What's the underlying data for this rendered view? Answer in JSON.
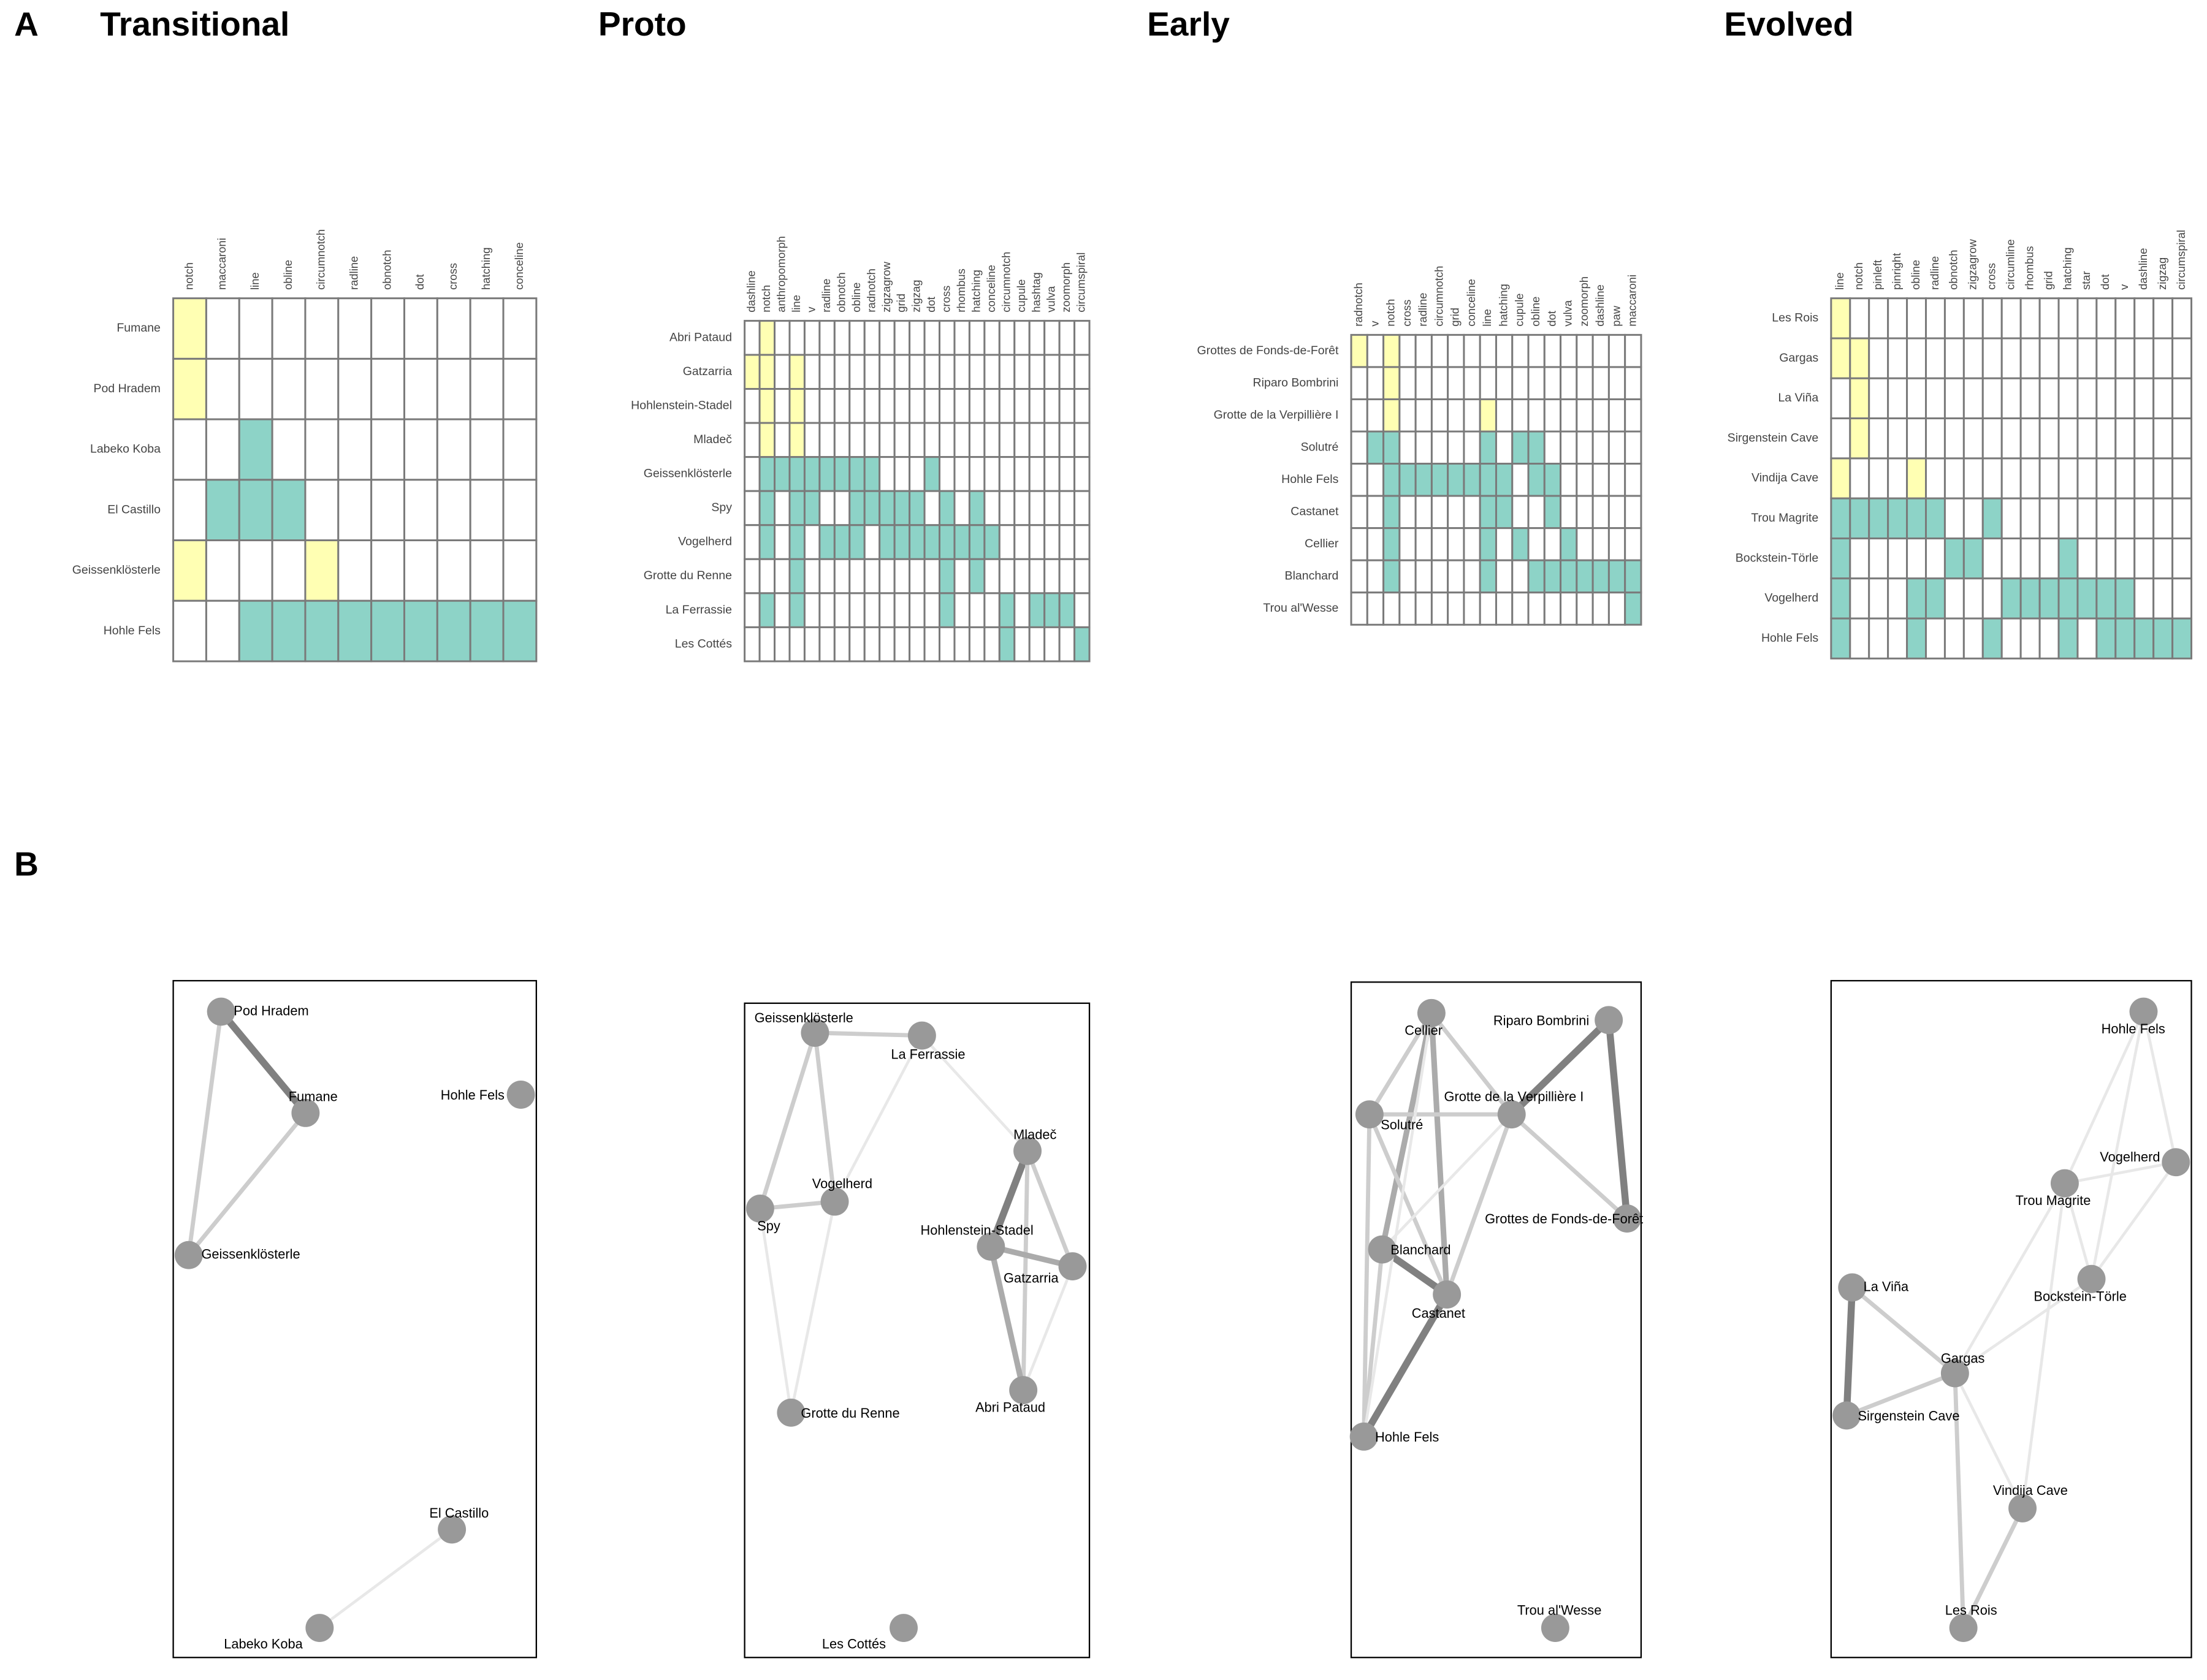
{
  "panel_labels": [
    "A",
    "B"
  ],
  "cell_colors": [
    "#ffffff",
    "#ffffb3",
    "#8dd3c7"
  ],
  "matrices": [
    {
      "title": "Transitional",
      "columns": [
        "notch",
        "maccaroni",
        "line",
        "obline",
        "circumnotch",
        "radline",
        "obnotch",
        "dot",
        "cross",
        "hatching",
        "conceline"
      ],
      "rows": [
        "Fumane",
        "Pod Hradem",
        "Labeko Koba",
        "El Castillo",
        "Geissenklösterle",
        "Hohle Fels"
      ],
      "cells": [
        [
          1,
          0,
          0,
          0,
          0,
          0,
          0,
          0,
          0,
          0,
          0
        ],
        [
          1,
          0,
          0,
          0,
          0,
          0,
          0,
          0,
          0,
          0,
          0
        ],
        [
          0,
          0,
          2,
          0,
          0,
          0,
          0,
          0,
          0,
          0,
          0
        ],
        [
          0,
          2,
          2,
          2,
          0,
          0,
          0,
          0,
          0,
          0,
          0
        ],
        [
          1,
          0,
          0,
          0,
          1,
          0,
          0,
          0,
          0,
          0,
          0
        ],
        [
          0,
          0,
          2,
          2,
          2,
          2,
          2,
          2,
          2,
          2,
          2
        ]
      ]
    },
    {
      "title": "Proto",
      "columns": [
        "dashline",
        "notch",
        "anthropomorph",
        "line",
        "v",
        "radline",
        "obnotch",
        "obline",
        "radnotch",
        "zigzagrow",
        "grid",
        "zigzag",
        "dot",
        "cross",
        "rhombus",
        "hatching",
        "conceline",
        "circumnotch",
        "cupule",
        "hashtag",
        "vulva",
        "zoomorph",
        "circumspiral"
      ],
      "rows": [
        "Abri Pataud",
        "Gatzarria",
        "Hohlenstein-Stadel",
        "Mladeč",
        "Geissenklösterle",
        "Spy",
        "Vogelherd",
        "Grotte du Renne",
        "La Ferrassie",
        "Les Cottés"
      ],
      "cells": [
        [
          0,
          1,
          0,
          0,
          0,
          0,
          0,
          0,
          0,
          0,
          0,
          0,
          0,
          0,
          0,
          0,
          0,
          0,
          0,
          0,
          0,
          0,
          0
        ],
        [
          1,
          1,
          0,
          1,
          0,
          0,
          0,
          0,
          0,
          0,
          0,
          0,
          0,
          0,
          0,
          0,
          0,
          0,
          0,
          0,
          0,
          0,
          0
        ],
        [
          0,
          1,
          0,
          1,
          0,
          0,
          0,
          0,
          0,
          0,
          0,
          0,
          0,
          0,
          0,
          0,
          0,
          0,
          0,
          0,
          0,
          0,
          0
        ],
        [
          0,
          1,
          0,
          1,
          0,
          0,
          0,
          0,
          0,
          0,
          0,
          0,
          0,
          0,
          0,
          0,
          0,
          0,
          0,
          0,
          0,
          0,
          0
        ],
        [
          0,
          2,
          2,
          2,
          2,
          2,
          2,
          2,
          2,
          0,
          0,
          0,
          2,
          0,
          0,
          0,
          0,
          0,
          0,
          0,
          0,
          0,
          0
        ],
        [
          0,
          2,
          0,
          2,
          2,
          0,
          0,
          2,
          2,
          2,
          2,
          2,
          0,
          2,
          0,
          2,
          0,
          0,
          0,
          0,
          0,
          0,
          0
        ],
        [
          0,
          2,
          0,
          2,
          0,
          2,
          2,
          2,
          0,
          2,
          2,
          2,
          2,
          2,
          2,
          2,
          2,
          0,
          0,
          0,
          0,
          0,
          0
        ],
        [
          0,
          0,
          0,
          2,
          0,
          0,
          0,
          0,
          0,
          0,
          0,
          0,
          0,
          2,
          0,
          2,
          0,
          0,
          0,
          0,
          0,
          0,
          0
        ],
        [
          0,
          2,
          0,
          2,
          0,
          0,
          0,
          0,
          0,
          0,
          0,
          0,
          0,
          2,
          0,
          0,
          0,
          2,
          0,
          2,
          2,
          2,
          0
        ],
        [
          0,
          0,
          0,
          0,
          0,
          0,
          0,
          0,
          0,
          0,
          0,
          0,
          0,
          0,
          0,
          0,
          0,
          2,
          0,
          0,
          0,
          0,
          2
        ]
      ]
    },
    {
      "title": "Early",
      "columns": [
        "radnotch",
        "v",
        "notch",
        "cross",
        "radline",
        "circumnotch",
        "grid",
        "conceline",
        "line",
        "hatching",
        "cupule",
        "obline",
        "dot",
        "vulva",
        "zoomorph",
        "dashline",
        "paw",
        "maccaroni"
      ],
      "rows": [
        "Grottes de Fonds-de-Forêt",
        "Riparo Bombrini",
        "Grotte de la Verpillière I",
        "Solutré",
        "Hohle Fels",
        "Castanet",
        "Cellier",
        "Blanchard",
        "Trou al'Wesse"
      ],
      "cells": [
        [
          1,
          0,
          1,
          0,
          0,
          0,
          0,
          0,
          0,
          0,
          0,
          0,
          0,
          0,
          0,
          0,
          0,
          0
        ],
        [
          0,
          0,
          1,
          0,
          0,
          0,
          0,
          0,
          0,
          0,
          0,
          0,
          0,
          0,
          0,
          0,
          0,
          0
        ],
        [
          0,
          0,
          1,
          0,
          0,
          0,
          0,
          0,
          1,
          0,
          0,
          0,
          0,
          0,
          0,
          0,
          0,
          0
        ],
        [
          0,
          2,
          2,
          0,
          0,
          0,
          0,
          0,
          2,
          0,
          2,
          2,
          0,
          0,
          0,
          0,
          0,
          0
        ],
        [
          0,
          0,
          2,
          2,
          2,
          2,
          2,
          2,
          2,
          2,
          0,
          2,
          2,
          0,
          0,
          0,
          0,
          0
        ],
        [
          0,
          0,
          2,
          0,
          0,
          0,
          0,
          0,
          2,
          2,
          0,
          0,
          2,
          0,
          0,
          0,
          0,
          0
        ],
        [
          0,
          0,
          2,
          0,
          0,
          0,
          0,
          0,
          2,
          0,
          2,
          0,
          0,
          2,
          0,
          0,
          0,
          0
        ],
        [
          0,
          0,
          2,
          0,
          0,
          0,
          0,
          0,
          2,
          0,
          0,
          2,
          2,
          2,
          2,
          2,
          2,
          2
        ],
        [
          0,
          0,
          0,
          0,
          0,
          0,
          0,
          0,
          0,
          0,
          0,
          0,
          0,
          0,
          0,
          0,
          0,
          2
        ]
      ]
    },
    {
      "title": "Evolved",
      "columns": [
        "line",
        "notch",
        "pinleft",
        "pinright",
        "obline",
        "radline",
        "obnotch",
        "zigzagrow",
        "cross",
        "circumline",
        "rhombus",
        "grid",
        "hatching",
        "star",
        "dot",
        "v",
        "dashline",
        "zigzag",
        "circumspiral"
      ],
      "rows": [
        "Les Rois",
        "Gargas",
        "La Viña",
        "Sirgenstein Cave",
        "Vindija Cave",
        "Trou Magrite",
        "Bockstein-Törle",
        "Vogelherd",
        "Hohle Fels"
      ],
      "cells": [
        [
          1,
          0,
          0,
          0,
          0,
          0,
          0,
          0,
          0,
          0,
          0,
          0,
          0,
          0,
          0,
          0,
          0,
          0,
          0
        ],
        [
          1,
          1,
          0,
          0,
          0,
          0,
          0,
          0,
          0,
          0,
          0,
          0,
          0,
          0,
          0,
          0,
          0,
          0,
          0
        ],
        [
          0,
          1,
          0,
          0,
          0,
          0,
          0,
          0,
          0,
          0,
          0,
          0,
          0,
          0,
          0,
          0,
          0,
          0,
          0
        ],
        [
          0,
          1,
          0,
          0,
          0,
          0,
          0,
          0,
          0,
          0,
          0,
          0,
          0,
          0,
          0,
          0,
          0,
          0,
          0
        ],
        [
          1,
          0,
          0,
          0,
          1,
          0,
          0,
          0,
          0,
          0,
          0,
          0,
          0,
          0,
          0,
          0,
          0,
          0,
          0
        ],
        [
          2,
          2,
          2,
          2,
          2,
          2,
          0,
          0,
          2,
          0,
          0,
          0,
          0,
          0,
          0,
          0,
          0,
          0,
          0
        ],
        [
          2,
          0,
          0,
          0,
          0,
          0,
          2,
          2,
          0,
          0,
          0,
          0,
          2,
          0,
          0,
          0,
          0,
          0,
          0
        ],
        [
          2,
          0,
          0,
          0,
          2,
          2,
          0,
          0,
          0,
          2,
          2,
          2,
          2,
          2,
          2,
          2,
          0,
          0,
          0
        ],
        [
          2,
          0,
          0,
          0,
          2,
          0,
          0,
          0,
          2,
          0,
          0,
          0,
          2,
          0,
          2,
          2,
          2,
          2,
          2
        ]
      ]
    }
  ],
  "networks": [
    {
      "nodes": [
        "Pod Hradem",
        "Fumane",
        "Hohle Fels",
        "Geissenklösterle",
        "El Castillo",
        "Labeko Koba"
      ],
      "edges": [
        {
          "source": 0,
          "target": 1,
          "weight": 4
        },
        {
          "source": 0,
          "target": 3,
          "weight": 2
        },
        {
          "source": 1,
          "target": 3,
          "weight": 2
        },
        {
          "source": 4,
          "target": 5,
          "weight": 1
        }
      ]
    },
    {
      "nodes": [
        "Geissenklösterle",
        "La Ferrassie",
        "Mladeč",
        "Spy",
        "Vogelherd",
        "Hohlenstein-Stadel",
        "Gatzarria",
        "Grotte du Renne",
        "Abri Pataud",
        "Les Cottés"
      ],
      "edges": [
        {
          "source": 0,
          "target": 3,
          "weight": 2
        },
        {
          "source": 0,
          "target": 4,
          "weight": 2
        },
        {
          "source": 0,
          "target": 1,
          "weight": 2
        },
        {
          "source": 3,
          "target": 4,
          "weight": 2
        },
        {
          "source": 4,
          "target": 1,
          "weight": 1
        },
        {
          "source": 1,
          "target": 2,
          "weight": 1
        },
        {
          "source": 3,
          "target": 7,
          "weight": 1
        },
        {
          "source": 4,
          "target": 7,
          "weight": 1
        },
        {
          "source": 2,
          "target": 5,
          "weight": 4
        },
        {
          "source": 2,
          "target": 6,
          "weight": 2
        },
        {
          "source": 2,
          "target": 8,
          "weight": 2
        },
        {
          "source": 5,
          "target": 6,
          "weight": 3
        },
        {
          "source": 5,
          "target": 8,
          "weight": 3
        },
        {
          "source": 6,
          "target": 8,
          "weight": 1
        }
      ]
    },
    {
      "nodes": [
        "Cellier",
        "Riparo Bombrini",
        "Solutré",
        "Grotte de la Verpillière I",
        "Grottes de Fonds-de-Forêt",
        "Blanchard",
        "Castanet",
        "Hohle Fels",
        "Trou al'Wesse"
      ],
      "edges": [
        {
          "source": 0,
          "target": 2,
          "weight": 2
        },
        {
          "source": 0,
          "target": 5,
          "weight": 3
        },
        {
          "source": 0,
          "target": 6,
          "weight": 3
        },
        {
          "source": 0,
          "target": 3,
          "weight": 2
        },
        {
          "source": 1,
          "target": 3,
          "weight": 4
        },
        {
          "source": 1,
          "target": 4,
          "weight": 4
        },
        {
          "source": 2,
          "target": 3,
          "weight": 2
        },
        {
          "source": 2,
          "target": 6,
          "weight": 2
        },
        {
          "source": 2,
          "target": 7,
          "weight": 2
        },
        {
          "source": 3,
          "target": 4,
          "weight": 2
        },
        {
          "source": 3,
          "target": 6,
          "weight": 2
        },
        {
          "source": 3,
          "target": 5,
          "weight": 1
        },
        {
          "source": 5,
          "target": 6,
          "weight": 4
        },
        {
          "source": 6,
          "target": 7,
          "weight": 4
        },
        {
          "source": 5,
          "target": 7,
          "weight": 2
        },
        {
          "source": 0,
          "target": 7,
          "weight": 1
        }
      ]
    },
    {
      "nodes": [
        "Hohle Fels",
        "Vogelherd",
        "Trou Magrite",
        "La Viña",
        "Bockstein-Törle",
        "Gargas",
        "Sirgenstein Cave",
        "Vindija Cave",
        "Les Rois"
      ],
      "edges": [
        {
          "source": 3,
          "target": 6,
          "weight": 4
        },
        {
          "source": 3,
          "target": 5,
          "weight": 2
        },
        {
          "source": 6,
          "target": 5,
          "weight": 2
        },
        {
          "source": 5,
          "target": 7,
          "weight": 1
        },
        {
          "source": 5,
          "target": 8,
          "weight": 2
        },
        {
          "source": 7,
          "target": 8,
          "weight": 2
        },
        {
          "source": 5,
          "target": 4,
          "weight": 1
        },
        {
          "source": 5,
          "target": 2,
          "weight": 1
        },
        {
          "source": 2,
          "target": 1,
          "weight": 1
        },
        {
          "source": 2,
          "target": 4,
          "weight": 1
        },
        {
          "source": 0,
          "target": 2,
          "weight": 1
        },
        {
          "source": 0,
          "target": 4,
          "weight": 1
        },
        {
          "source": 0,
          "target": 1,
          "weight": 1
        },
        {
          "source": 1,
          "target": 4,
          "weight": 1
        },
        {
          "source": 7,
          "target": 2,
          "weight": 1
        }
      ]
    }
  ]
}
